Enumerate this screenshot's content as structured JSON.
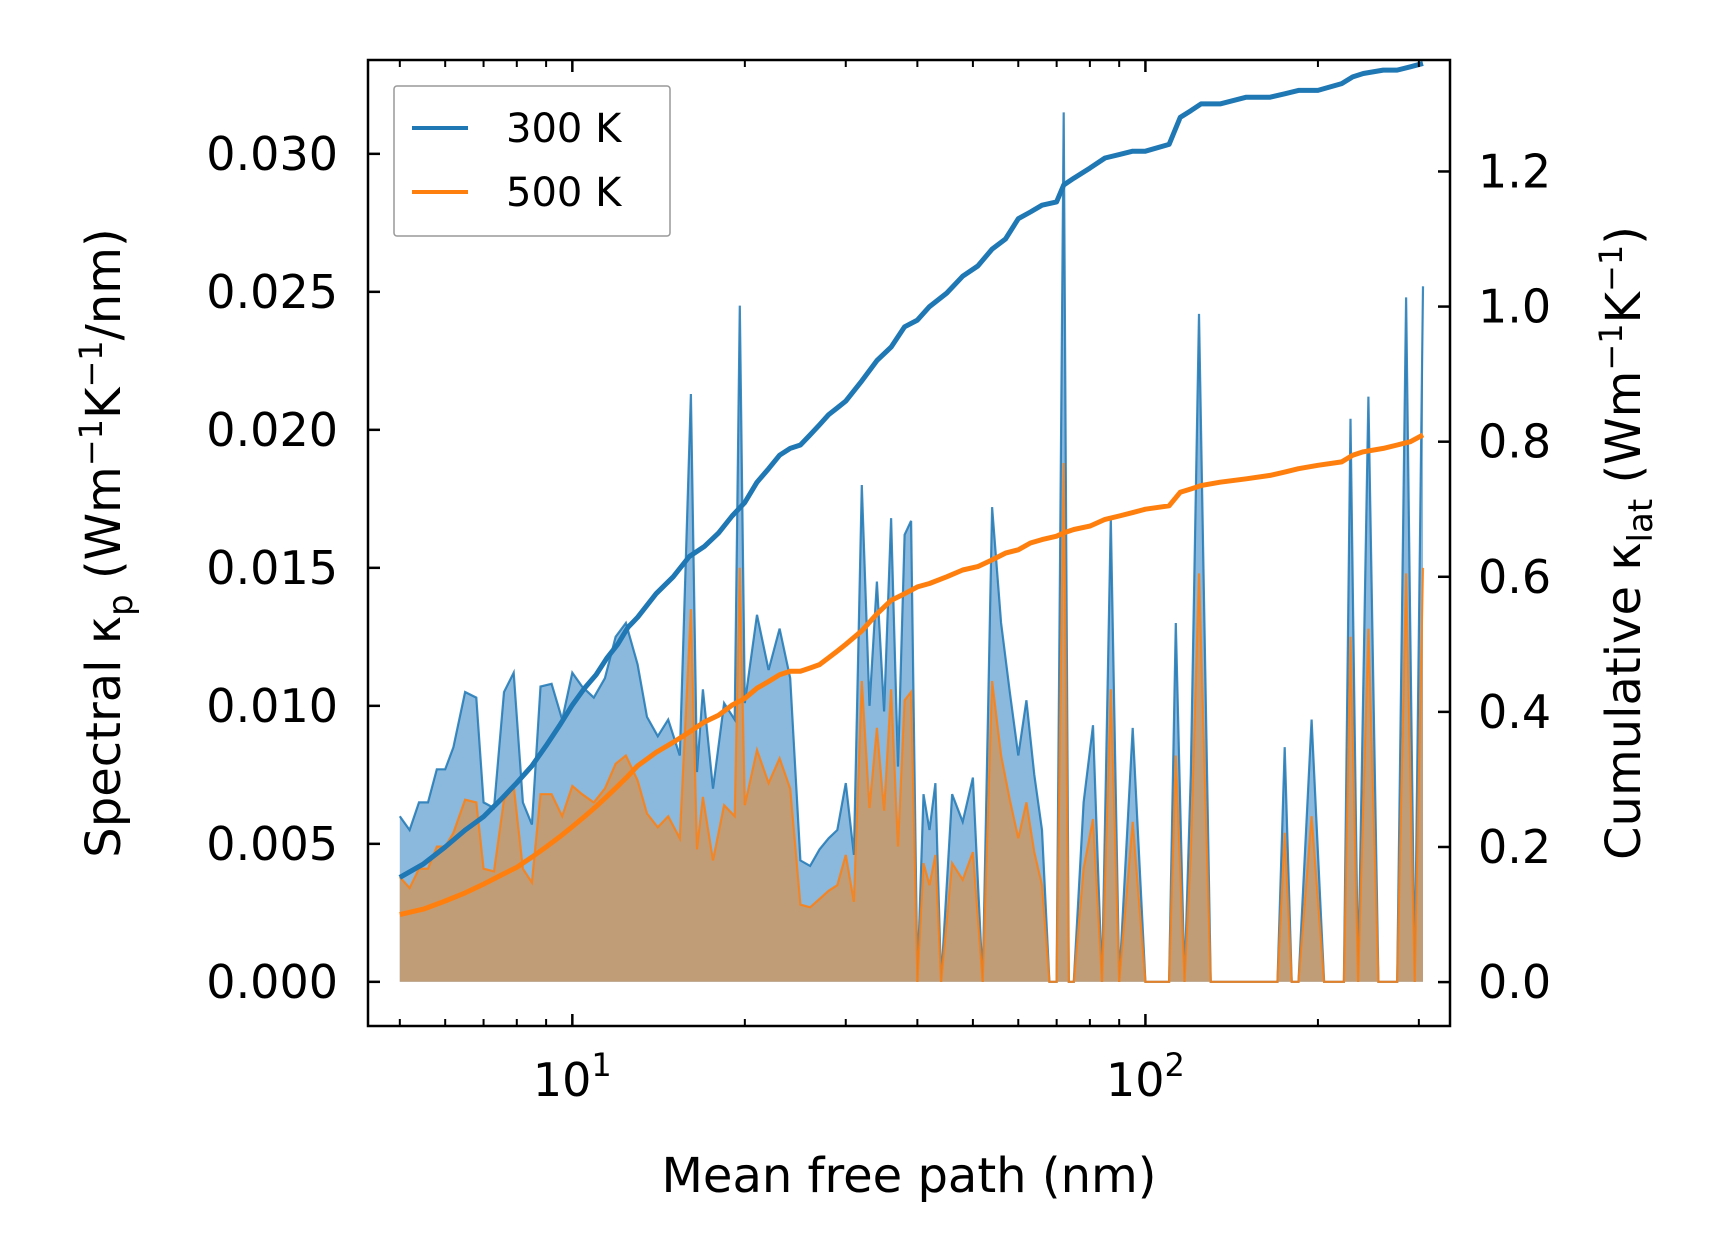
{
  "chart_data": {
    "type": "line",
    "xscale": "log",
    "xlim": [
      4.4,
      340
    ],
    "xlabel": "Mean free path (nm)",
    "ylabel_left": {
      "main": "Spectral κ",
      "sub": "p",
      "unit_pre": " (Wm",
      "exp1": "−1",
      "unit_mid": "K",
      "exp2": "−1",
      "unit_post": "/nm)"
    },
    "ylabel_right": {
      "main": "Cumulative κ",
      "sub": "lat",
      "unit_pre": " (Wm",
      "exp1": "−1",
      "unit_mid": "K",
      "exp2": "−1",
      "unit_post": ")"
    },
    "ylim_left": [
      -0.0016,
      0.0334
    ],
    "ylim_right": [
      -0.065,
      1.365
    ],
    "xticks": [
      {
        "base": "10",
        "exp": "1",
        "value": 10
      },
      {
        "base": "10",
        "exp": "2",
        "value": 100
      }
    ],
    "yticks_left": [
      "0.000",
      "0.005",
      "0.010",
      "0.015",
      "0.020",
      "0.025",
      "0.030"
    ],
    "yticks_right": [
      "0.0",
      "0.2",
      "0.4",
      "0.6",
      "0.8",
      "1.0",
      "1.2"
    ],
    "legend": {
      "position": "top-left",
      "entries": [
        "300 K",
        "500 K"
      ]
    },
    "colors": {
      "300K": "#1f77b4",
      "500K": "#ff7f0e",
      "fill300": "#8bb9de",
      "fill500": "#c69a6e"
    },
    "series_spectral": [
      {
        "name": "300 K",
        "x": [
          5.0,
          5.2,
          5.4,
          5.6,
          5.8,
          6.0,
          6.2,
          6.5,
          6.8,
          7.0,
          7.3,
          7.6,
          7.9,
          8.2,
          8.5,
          8.8,
          9.2,
          9.6,
          10.0,
          10.4,
          10.9,
          11.4,
          11.9,
          12.4,
          13.0,
          13.5,
          14.1,
          14.7,
          15.4,
          16.1,
          16.5,
          16.9,
          17.6,
          18.4,
          19.2,
          19.6,
          20.0,
          21.0,
          22.0,
          23.0,
          24.0,
          25.0,
          26.0,
          27.0,
          28.0,
          29.0,
          30.0,
          31.0,
          32.0,
          33.0,
          34.0,
          35.0,
          36.0,
          37.0,
          38.0,
          39.0,
          40.0,
          41.0,
          42.0,
          43.0,
          44.0,
          46.0,
          48.0,
          50.0,
          52.0,
          54.0,
          56.0,
          58.0,
          60.0,
          62.0,
          64.0,
          66.0,
          68.0,
          70.0,
          72.0,
          73.5,
          75.0,
          78.0,
          81.0,
          84.0,
          87.0,
          90.0,
          95.0,
          100.0,
          105.0,
          110.0,
          113.0,
          117.0,
          120.0,
          124.0,
          130.0,
          140.0,
          150.0,
          160.0,
          170.0,
          175.0,
          180.0,
          185.0,
          195.0,
          205.0,
          215.0,
          222.0,
          228.0,
          235.0,
          245.0,
          255.0,
          265.0,
          275.0,
          285.0,
          295.0,
          305.0
        ],
        "values": [
          0.006,
          0.0055,
          0.0065,
          0.0065,
          0.0077,
          0.0077,
          0.0085,
          0.0105,
          0.0103,
          0.0065,
          0.0063,
          0.0105,
          0.0112,
          0.0065,
          0.0057,
          0.0107,
          0.0108,
          0.0095,
          0.0112,
          0.0107,
          0.0103,
          0.011,
          0.0125,
          0.013,
          0.0115,
          0.0096,
          0.0089,
          0.0095,
          0.0082,
          0.0213,
          0.0076,
          0.0106,
          0.007,
          0.0101,
          0.0095,
          0.0245,
          0.0101,
          0.0133,
          0.0113,
          0.0128,
          0.011,
          0.0044,
          0.0042,
          0.0048,
          0.0052,
          0.0055,
          0.0072,
          0.0046,
          0.018,
          0.01,
          0.0145,
          0.0098,
          0.0168,
          0.0078,
          0.0162,
          0.0167,
          0.0,
          0.0068,
          0.0055,
          0.0072,
          0.0,
          0.0068,
          0.0058,
          0.0074,
          0.0,
          0.0172,
          0.013,
          0.0105,
          0.0082,
          0.0102,
          0.0075,
          0.0055,
          0.0,
          0.0,
          0.0315,
          0.0,
          0.0,
          0.0065,
          0.0093,
          0.0,
          0.0168,
          0.0,
          0.0092,
          0.0,
          0.0,
          0.0,
          0.013,
          0.0,
          0.0075,
          0.0242,
          0.0,
          0.0,
          0.0,
          0.0,
          0.0,
          0.0085,
          0.0,
          0.0,
          0.0095,
          0.0,
          0.0,
          0.0,
          0.0204,
          0.0,
          0.0212,
          0.0,
          0.0,
          0.0,
          0.0248,
          0.0,
          0.0252
        ]
      },
      {
        "name": "500 K",
        "x": [
          5.0,
          5.2,
          5.4,
          5.6,
          5.8,
          6.0,
          6.2,
          6.5,
          6.8,
          7.0,
          7.3,
          7.6,
          7.9,
          8.2,
          8.5,
          8.8,
          9.2,
          9.6,
          10.0,
          10.4,
          10.9,
          11.4,
          11.9,
          12.4,
          13.0,
          13.5,
          14.1,
          14.7,
          15.4,
          16.1,
          16.5,
          16.9,
          17.6,
          18.4,
          19.2,
          19.6,
          20.0,
          21.0,
          22.0,
          23.0,
          24.0,
          25.0,
          26.0,
          27.0,
          28.0,
          29.0,
          30.0,
          31.0,
          32.0,
          33.0,
          34.0,
          35.0,
          36.0,
          37.0,
          38.0,
          39.0,
          40.0,
          41.0,
          42.0,
          43.0,
          44.0,
          46.0,
          48.0,
          50.0,
          52.0,
          54.0,
          56.0,
          58.0,
          60.0,
          62.0,
          64.0,
          66.0,
          68.0,
          70.0,
          72.0,
          73.5,
          75.0,
          78.0,
          81.0,
          84.0,
          87.0,
          90.0,
          95.0,
          100.0,
          105.0,
          110.0,
          113.0,
          117.0,
          120.0,
          124.0,
          130.0,
          140.0,
          150.0,
          160.0,
          170.0,
          175.0,
          180.0,
          185.0,
          195.0,
          205.0,
          215.0,
          222.0,
          228.0,
          235.0,
          245.0,
          255.0,
          265.0,
          275.0,
          285.0,
          295.0,
          305.0
        ],
        "values": [
          0.0038,
          0.0034,
          0.0041,
          0.0041,
          0.0049,
          0.0049,
          0.0054,
          0.0066,
          0.0065,
          0.0041,
          0.004,
          0.0066,
          0.0071,
          0.0041,
          0.0036,
          0.0068,
          0.0068,
          0.006,
          0.0071,
          0.0068,
          0.0065,
          0.007,
          0.0079,
          0.0082,
          0.0073,
          0.0061,
          0.0056,
          0.006,
          0.0052,
          0.0135,
          0.0048,
          0.0067,
          0.0044,
          0.0064,
          0.006,
          0.015,
          0.0064,
          0.0084,
          0.0072,
          0.0081,
          0.007,
          0.0028,
          0.0027,
          0.003,
          0.0033,
          0.0035,
          0.0046,
          0.0029,
          0.0109,
          0.0063,
          0.0092,
          0.0062,
          0.0106,
          0.0049,
          0.0102,
          0.0105,
          0.0,
          0.0043,
          0.0035,
          0.0046,
          0.0,
          0.0043,
          0.0037,
          0.0047,
          0.0,
          0.0109,
          0.0082,
          0.0066,
          0.0052,
          0.0065,
          0.0047,
          0.0035,
          0.0,
          0.0,
          0.0188,
          0.0,
          0.0,
          0.0041,
          0.0059,
          0.0,
          0.0106,
          0.0,
          0.0058,
          0.0,
          0.0,
          0.0,
          0.0082,
          0.0,
          0.0047,
          0.0148,
          0.0,
          0.0,
          0.0,
          0.0,
          0.0,
          0.0054,
          0.0,
          0.0,
          0.006,
          0.0,
          0.0,
          0.0,
          0.0125,
          0.0,
          0.0128,
          0.0,
          0.0,
          0.0,
          0.0148,
          0.0,
          0.015
        ]
      }
    ],
    "series_cumulative": [
      {
        "name": "300 K",
        "x": [
          5.0,
          5.5,
          6.0,
          6.5,
          7.0,
          7.5,
          8.0,
          8.5,
          9.0,
          9.5,
          10.0,
          10.5,
          11.0,
          11.5,
          12.0,
          12.5,
          13.0,
          14.0,
          15.0,
          16.0,
          17.0,
          18.0,
          19.0,
          20.0,
          21.0,
          22.0,
          23.0,
          24.0,
          25.0,
          26.0,
          27.0,
          28.0,
          29.0,
          30.0,
          32.0,
          34.0,
          36.0,
          38.0,
          40.0,
          42.0,
          45.0,
          48.0,
          51.0,
          54.0,
          57.0,
          60.0,
          63.0,
          66.0,
          70.0,
          72.0,
          75.0,
          80.0,
          85.0,
          90.0,
          95.0,
          100.0,
          110.0,
          115.0,
          120.0,
          125.0,
          135.0,
          150.0,
          165.0,
          175.0,
          185.0,
          200.0,
          220.0,
          230.0,
          240.0,
          260.0,
          275.0,
          290.0,
          305.0
        ],
        "values": [
          0.155,
          0.175,
          0.2,
          0.225,
          0.245,
          0.27,
          0.295,
          0.32,
          0.35,
          0.38,
          0.41,
          0.435,
          0.455,
          0.48,
          0.5,
          0.525,
          0.54,
          0.575,
          0.6,
          0.63,
          0.645,
          0.665,
          0.69,
          0.71,
          0.74,
          0.76,
          0.78,
          0.79,
          0.795,
          0.81,
          0.825,
          0.84,
          0.85,
          0.86,
          0.89,
          0.92,
          0.94,
          0.97,
          0.98,
          1.0,
          1.02,
          1.045,
          1.06,
          1.085,
          1.1,
          1.13,
          1.14,
          1.15,
          1.155,
          1.18,
          1.19,
          1.205,
          1.22,
          1.225,
          1.23,
          1.23,
          1.24,
          1.28,
          1.29,
          1.3,
          1.3,
          1.31,
          1.31,
          1.315,
          1.32,
          1.32,
          1.33,
          1.34,
          1.345,
          1.35,
          1.35,
          1.355,
          1.36
        ]
      },
      {
        "name": "500 K",
        "x": [
          5.0,
          5.5,
          6.0,
          6.5,
          7.0,
          7.5,
          8.0,
          8.5,
          9.0,
          9.5,
          10.0,
          10.5,
          11.0,
          11.5,
          12.0,
          12.5,
          13.0,
          14.0,
          15.0,
          16.0,
          17.0,
          18.0,
          19.0,
          20.0,
          21.0,
          22.0,
          23.0,
          24.0,
          25.0,
          26.0,
          27.0,
          28.0,
          29.0,
          30.0,
          32.0,
          34.0,
          36.0,
          38.0,
          40.0,
          42.0,
          45.0,
          48.0,
          51.0,
          54.0,
          57.0,
          60.0,
          63.0,
          66.0,
          70.0,
          72.0,
          75.0,
          80.0,
          85.0,
          90.0,
          95.0,
          100.0,
          110.0,
          115.0,
          120.0,
          125.0,
          135.0,
          150.0,
          165.0,
          175.0,
          185.0,
          200.0,
          220.0,
          230.0,
          240.0,
          260.0,
          275.0,
          290.0,
          305.0
        ],
        "values": [
          0.1,
          0.108,
          0.12,
          0.132,
          0.145,
          0.158,
          0.17,
          0.185,
          0.2,
          0.215,
          0.23,
          0.245,
          0.26,
          0.275,
          0.29,
          0.305,
          0.32,
          0.34,
          0.355,
          0.37,
          0.385,
          0.395,
          0.41,
          0.42,
          0.435,
          0.445,
          0.455,
          0.46,
          0.46,
          0.465,
          0.47,
          0.48,
          0.49,
          0.5,
          0.52,
          0.545,
          0.565,
          0.575,
          0.585,
          0.59,
          0.6,
          0.61,
          0.615,
          0.625,
          0.635,
          0.64,
          0.65,
          0.655,
          0.66,
          0.665,
          0.67,
          0.675,
          0.685,
          0.69,
          0.695,
          0.7,
          0.705,
          0.725,
          0.73,
          0.735,
          0.74,
          0.745,
          0.75,
          0.755,
          0.76,
          0.765,
          0.77,
          0.78,
          0.785,
          0.79,
          0.795,
          0.8,
          0.81
        ]
      }
    ]
  }
}
